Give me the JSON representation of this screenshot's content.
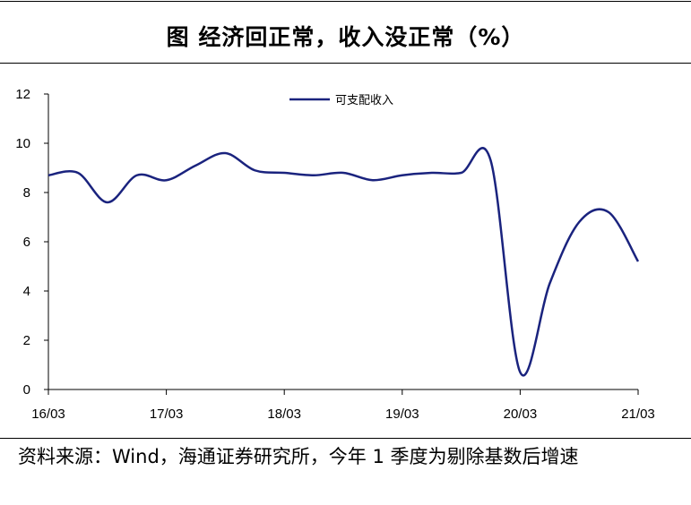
{
  "title": "图  经济回正常，收入没正常（%）",
  "source": "资料来源：Wind，海通证券研究所，今年 1 季度为剔除基数后增速",
  "chart_data": {
    "type": "line",
    "title": "经济回正常，收入没正常（%）",
    "xlabel": "",
    "ylabel": "",
    "x_tick_labels": [
      "16/03",
      "17/03",
      "18/03",
      "19/03",
      "20/03",
      "21/03"
    ],
    "y_ticks": [
      0,
      2,
      4,
      6,
      8,
      10,
      12
    ],
    "ylim": [
      0,
      12
    ],
    "xlim": [
      0,
      20
    ],
    "grid": false,
    "legend_position": "top-center",
    "series": [
      {
        "name": "可支配收入",
        "color": "#1a237e",
        "x": [
          0,
          1,
          2,
          3,
          4,
          5,
          6,
          7,
          8,
          9,
          10,
          11,
          12,
          13,
          14,
          15,
          16,
          17,
          18,
          19,
          20
        ],
        "y": [
          8.7,
          8.8,
          7.6,
          8.7,
          8.5,
          9.1,
          9.6,
          8.9,
          8.8,
          8.7,
          8.8,
          8.5,
          8.7,
          8.8,
          8.8,
          9.3,
          0.7,
          4.3,
          6.8,
          7.2,
          5.2
        ]
      }
    ]
  }
}
